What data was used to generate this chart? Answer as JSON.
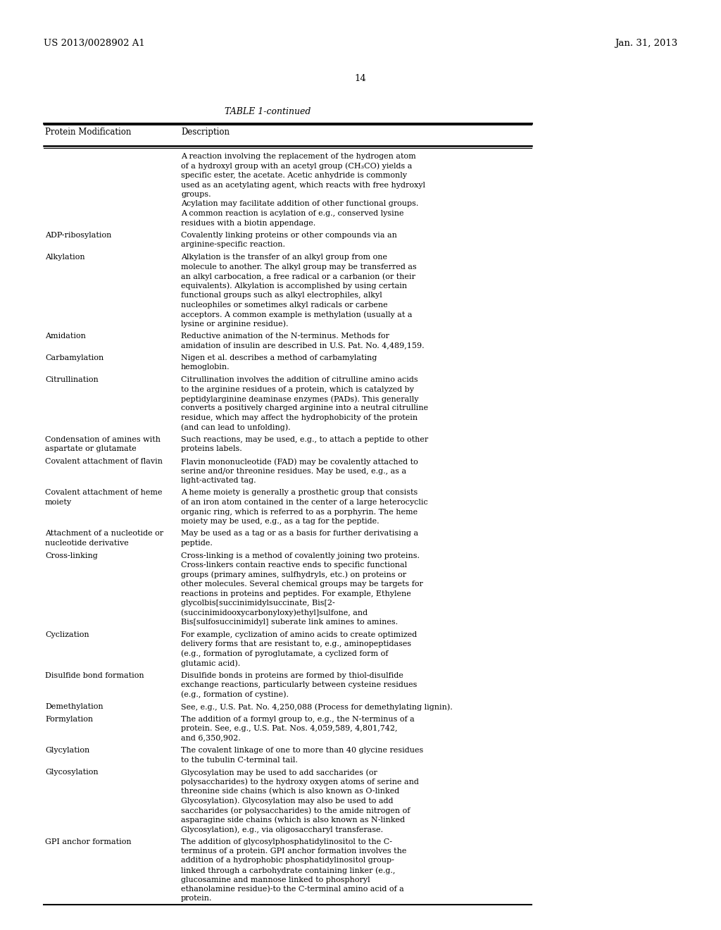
{
  "header_left": "US 2013/0028902 A1",
  "header_right": "Jan. 31, 2013",
  "page_number": "14",
  "table_title": "TABLE 1-continued",
  "col1_header": "Protein Modification",
  "col2_header": "Description",
  "background_color": "#ffffff",
  "text_color": "#000000",
  "col1_wrap": 26,
  "col2_wrap": 55,
  "font_size": 8.0,
  "rows": [
    {
      "col1": "",
      "col2": "A reaction involving the replacement of the hydrogen atom\nof a hydroxyl group with an acetyl group (CH₃CO) yields a\nspecific ester, the acetate. Acetic anhydride is commonly\nused as an acetylating agent, which reacts with free hydroxyl\ngroups.\nAcylation may facilitate addition of other functional groups.\nA common reaction is acylation of e.g., conserved lysine\nresidues with a biotin appendage."
    },
    {
      "col1": "ADP-ribosylation",
      "col2": "Covalently linking proteins or other compounds via an\narginine-specific reaction."
    },
    {
      "col1": "Alkylation",
      "col2": "Alkylation is the transfer of an alkyl group from one\nmolecule to another. The alkyl group may be transferred as\nan alkyl carbocation, a free radical or a carbanion (or their\nequivalents). Alkylation is accomplished by using certain\nfunctional groups such as alkyl electrophiles, alkyl\nnucleophiles or sometimes alkyl radicals or carbene\nacceptors. A common example is methylation (usually at a\nlysine or arginine residue)."
    },
    {
      "col1": "Amidation",
      "col2": "Reductive animation of the N-terminus. Methods for\namidation of insulin are described in U.S. Pat. No. 4,489,159."
    },
    {
      "col1": "Carbamylation",
      "col2": "Nigen et al. describes a method of carbamylating\nhemoglobin."
    },
    {
      "col1": "Citrullination",
      "col2": "Citrullination involves the addition of citrulline amino acids\nto the arginine residues of a protein, which is catalyzed by\npeptidylarginine deaminase enzymes (PADs). This generally\nconverts a positively charged arginine into a neutral citrulline\nresidue, which may affect the hydrophobicity of the protein\n(and can lead to unfolding)."
    },
    {
      "col1": "Condensation of amines with\naspartate or glutamate",
      "col2": "Such reactions, may be used, e.g., to attach a peptide to other\nproteins labels."
    },
    {
      "col1": "Covalent attachment of flavin",
      "col2": "Flavin mononucleotide (FAD) may be covalently attached to\nserine and/or threonine residues. May be used, e.g., as a\nlight-activated tag."
    },
    {
      "col1": "Covalent attachment of heme\nmoiety",
      "col2": "A heme moiety is generally a prosthetic group that consists\nof an iron atom contained in the center of a large heterocyclic\norganic ring, which is referred to as a porphyrin. The heme\nmoiety may be used, e.g., as a tag for the peptide."
    },
    {
      "col1": "Attachment of a nucleotide or\nnucleotide derivative",
      "col2": "May be used as a tag or as a basis for further derivatising a\npeptide."
    },
    {
      "col1": "Cross-linking",
      "col2": "Cross-linking is a method of covalently joining two proteins.\nCross-linkers contain reactive ends to specific functional\ngroups (primary amines, sulfhydryls, etc.) on proteins or\nother molecules. Several chemical groups may be targets for\nreactions in proteins and peptides. For example, Ethylene\nglycolbis[succinimidylsuccinate, Bis[2-\n(succinimidooxycarbonyloxy)ethyl]sulfone, and\nBis[sulfosuccinimidyl] suberate link amines to amines."
    },
    {
      "col1": "Cyclization",
      "col2": "For example, cyclization of amino acids to create optimized\ndelivery forms that are resistant to, e.g., aminopeptidases\n(e.g., formation of pyroglutamate, a cyclized form of\nglutamic acid)."
    },
    {
      "col1": "Disulfide bond formation",
      "col2": "Disulfide bonds in proteins are formed by thiol-disulfide\nexchange reactions, particularly between cysteine residues\n(e.g., formation of cystine)."
    },
    {
      "col1": "Demethylation",
      "col2": "See, e.g., U.S. Pat. No. 4,250,088 (Process for demethylating lignin)."
    },
    {
      "col1": "Formylation",
      "col2": "The addition of a formyl group to, e.g., the N-terminus of a\nprotein. See, e.g., U.S. Pat. Nos. 4,059,589, 4,801,742,\nand 6,350,902."
    },
    {
      "col1": "Glycylation",
      "col2": "The covalent linkage of one to more than 40 glycine residues\nto the tubulin C-terminal tail."
    },
    {
      "col1": "Glycosylation",
      "col2": "Glycosylation may be used to add saccharides (or\npolysaccharides) to the hydroxy oxygen atoms of serine and\nthreonine side chains (which is also known as O-linked\nGlycosylation). Glycosylation may also be used to add\nsaccharides (or polysaccharides) to the amide nitrogen of\nasparagine side chains (which is also known as N-linked\nGlycosylation), e.g., via oligosaccharyl transferase."
    },
    {
      "col1": "GPI anchor formation",
      "col2": "The addition of glycosylphosphatidylinositol to the C-\nterminus of a protein. GPI anchor formation involves the\naddition of a hydrophobic phosphatidylinositol group-\nlinked through a carbohydrate containing linker (e.g.,\nglucosamine and mannose linked to phosphoryl\nethanolamine residue)-to the C-terminal amino acid of a\nprotein."
    }
  ]
}
